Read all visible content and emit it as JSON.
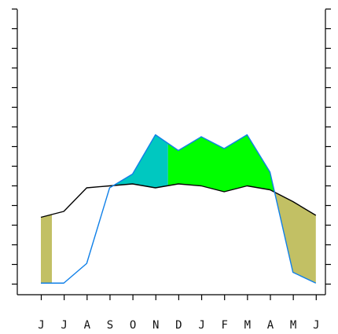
{
  "chart_data": {
    "type": "area",
    "title": "",
    "xlabel": "",
    "ylabel": "",
    "categories": [
      "J",
      "J",
      "A",
      "S",
      "O",
      "N",
      "D",
      "J",
      "F",
      "M",
      "A",
      "M",
      "J"
    ],
    "ylim": [
      0,
      14
    ],
    "yticks": [
      0,
      1,
      2,
      3,
      4,
      5,
      6,
      7,
      8,
      9,
      10,
      11,
      12,
      13,
      14
    ],
    "grid": false,
    "legend": "none",
    "series": [
      {
        "values": [
          3.4,
          3.7,
          4.9,
          5.0,
          5.1,
          4.9,
          5.1,
          5.0,
          4.7,
          5.0,
          4.8,
          4.2,
          3.5
        ]
      },
      {
        "values": [
          0.05,
          0.05,
          1.05,
          4.9,
          5.6,
          7.6,
          6.8,
          7.5,
          6.9,
          7.6,
          5.7,
          0.6,
          0.05
        ]
      }
    ],
    "fills": [
      {
        "color": "#c2c064"
      },
      {
        "color": "#00c8c0"
      },
      {
        "color": "#00ff00"
      }
    ],
    "line_colors": [
      "#000000",
      "#1080e8"
    ]
  }
}
